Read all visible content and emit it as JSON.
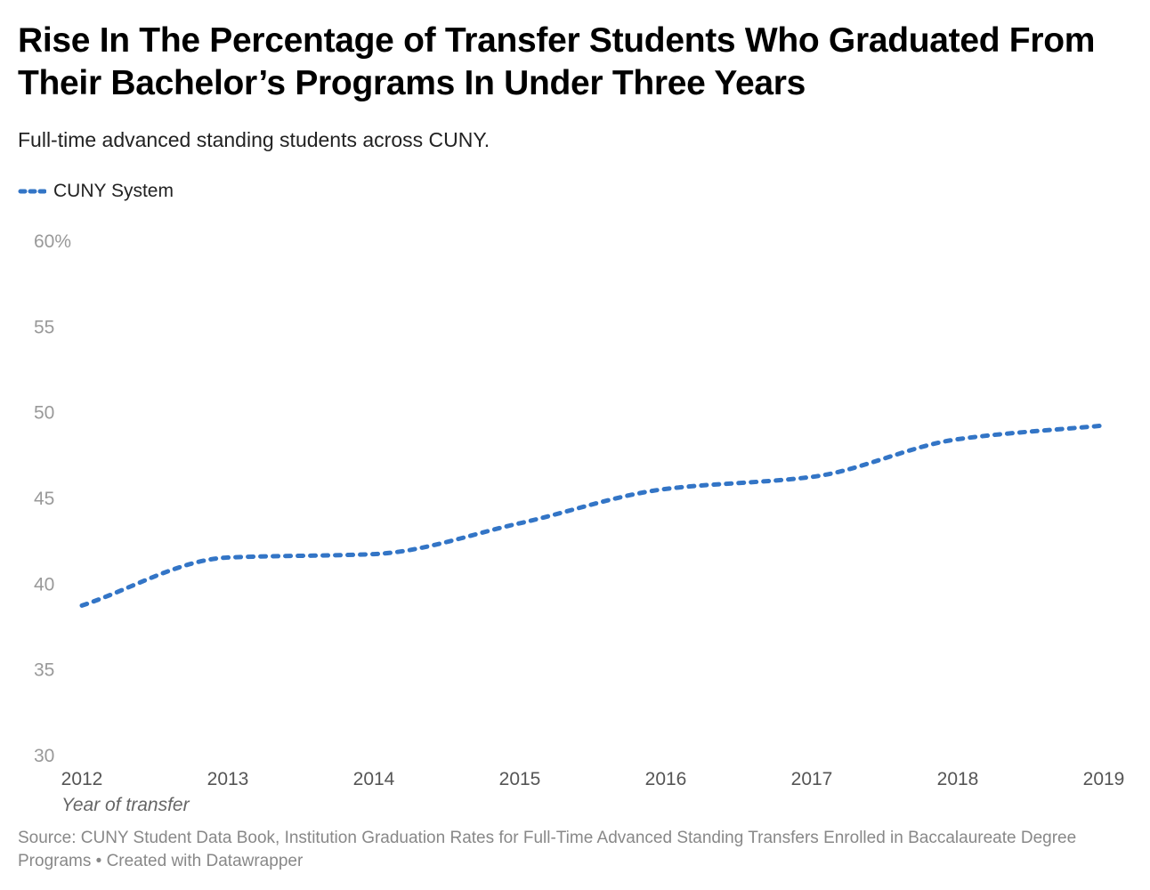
{
  "title": "Rise In The Percentage of Transfer Students Who Graduated From Their Bachelor’s Programs In Under Three Years",
  "subtitle": "Full-time advanced standing students across CUNY.",
  "source": "Source: CUNY Student Data Book, Institution Graduation Rates for Full-Time Advanced Standing Transfers Enrolled in Baccalaureate Degree Programs • Created with Datawrapper",
  "chart_data": {
    "type": "line",
    "title": "Rise In The Percentage of Transfer Students Who Graduated From Their Bachelor’s Programs In Under Three Years",
    "xlabel": "Year of transfer",
    "ylabel": "",
    "x": [
      2012,
      2013,
      2014,
      2015,
      2016,
      2017,
      2018,
      2019
    ],
    "series": [
      {
        "name": "CUNY System",
        "color": "#3375c6",
        "style": "dotted",
        "values": [
          38.7,
          41.5,
          41.7,
          43.5,
          45.5,
          46.2,
          48.4,
          49.2
        ]
      }
    ],
    "ylim": [
      30,
      60
    ],
    "yticks": [
      "30",
      "35",
      "40",
      "45",
      "50",
      "55",
      "60%"
    ],
    "xticks": [
      "2012",
      "2013",
      "2014",
      "2015",
      "2016",
      "2017",
      "2018",
      "2019"
    ],
    "grid": false,
    "legend": "top-left"
  }
}
